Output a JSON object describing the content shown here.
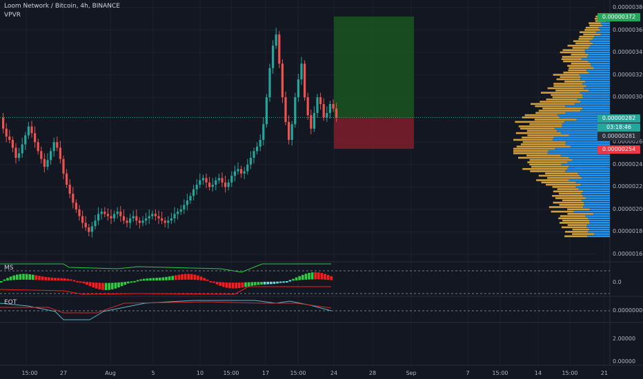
{
  "header": {
    "symbol": "Loom Network / Bitcoin, 4h, BINANCE",
    "indicator": "VPVR"
  },
  "panes": {
    "pane2_label": "MS",
    "pane3_label": "EOT"
  },
  "price_axis": {
    "ticks": [
      "0.00000380",
      "0.00000360",
      "0.00000340",
      "0.00000320",
      "0.00000300",
      "0.00000260",
      "0.00000240",
      "0.00000220",
      "0.00000200",
      "0.00000180",
      "0.00000160"
    ],
    "tick_values": [
      380,
      360,
      340,
      320,
      300,
      260,
      240,
      220,
      200,
      180,
      160
    ]
  },
  "badges": {
    "target": "0.00000372",
    "current": "0.00000282",
    "countdown": "03:18:46",
    "last": "0.00000281",
    "stop": "0.00000254"
  },
  "pane2_axis": {
    "zero": "0.0"
  },
  "pane3_axis": {
    "ticks": [
      "0.00000000",
      "2.00000",
      "0.00000"
    ]
  },
  "time_axis": {
    "labels": [
      "15:00",
      "27",
      "Aug",
      "5",
      "10",
      "15:00",
      "17",
      "15:00",
      "24",
      "28",
      "Sep",
      "7",
      "15:00",
      "14",
      "15:00",
      "21"
    ]
  },
  "colors": {
    "background": "#131722",
    "up": "#26a69a",
    "down": "#ef5350",
    "profit_zone": "#1b5e20",
    "loss_zone": "#7f1d2a",
    "vp_up": "#2196f3",
    "vp_down": "#d4a13a",
    "target_badge": "#26a65b",
    "stop_badge": "#f23645"
  },
  "chart_data": {
    "type": "candlestick",
    "series_unit": "price in satoshi-scale x 1e-8 BTC",
    "trade_zone": {
      "entry": 282,
      "target": 372,
      "stop": 254
    },
    "closes": [
      282,
      272,
      265,
      262,
      255,
      246,
      250,
      258,
      266,
      274,
      268,
      260,
      252,
      245,
      238,
      244,
      252,
      260,
      255,
      245,
      232,
      222,
      214,
      206,
      200,
      194,
      188,
      184,
      180,
      185,
      190,
      196,
      198,
      196,
      194,
      192,
      196,
      198,
      194,
      190,
      188,
      192,
      194,
      190,
      188,
      190,
      192,
      194,
      196,
      194,
      192,
      190,
      188,
      190,
      192,
      196,
      198,
      200,
      204,
      208,
      212,
      218,
      222,
      226,
      228,
      224,
      220,
      222,
      226,
      228,
      224,
      220,
      224,
      230,
      234,
      236,
      232,
      234,
      240,
      246,
      252,
      256,
      262,
      276,
      300,
      326,
      346,
      356,
      330,
      300,
      278,
      262,
      276,
      300,
      316,
      330,
      300,
      284,
      272,
      286,
      300,
      294,
      282,
      286,
      294,
      290,
      282
    ]
  }
}
